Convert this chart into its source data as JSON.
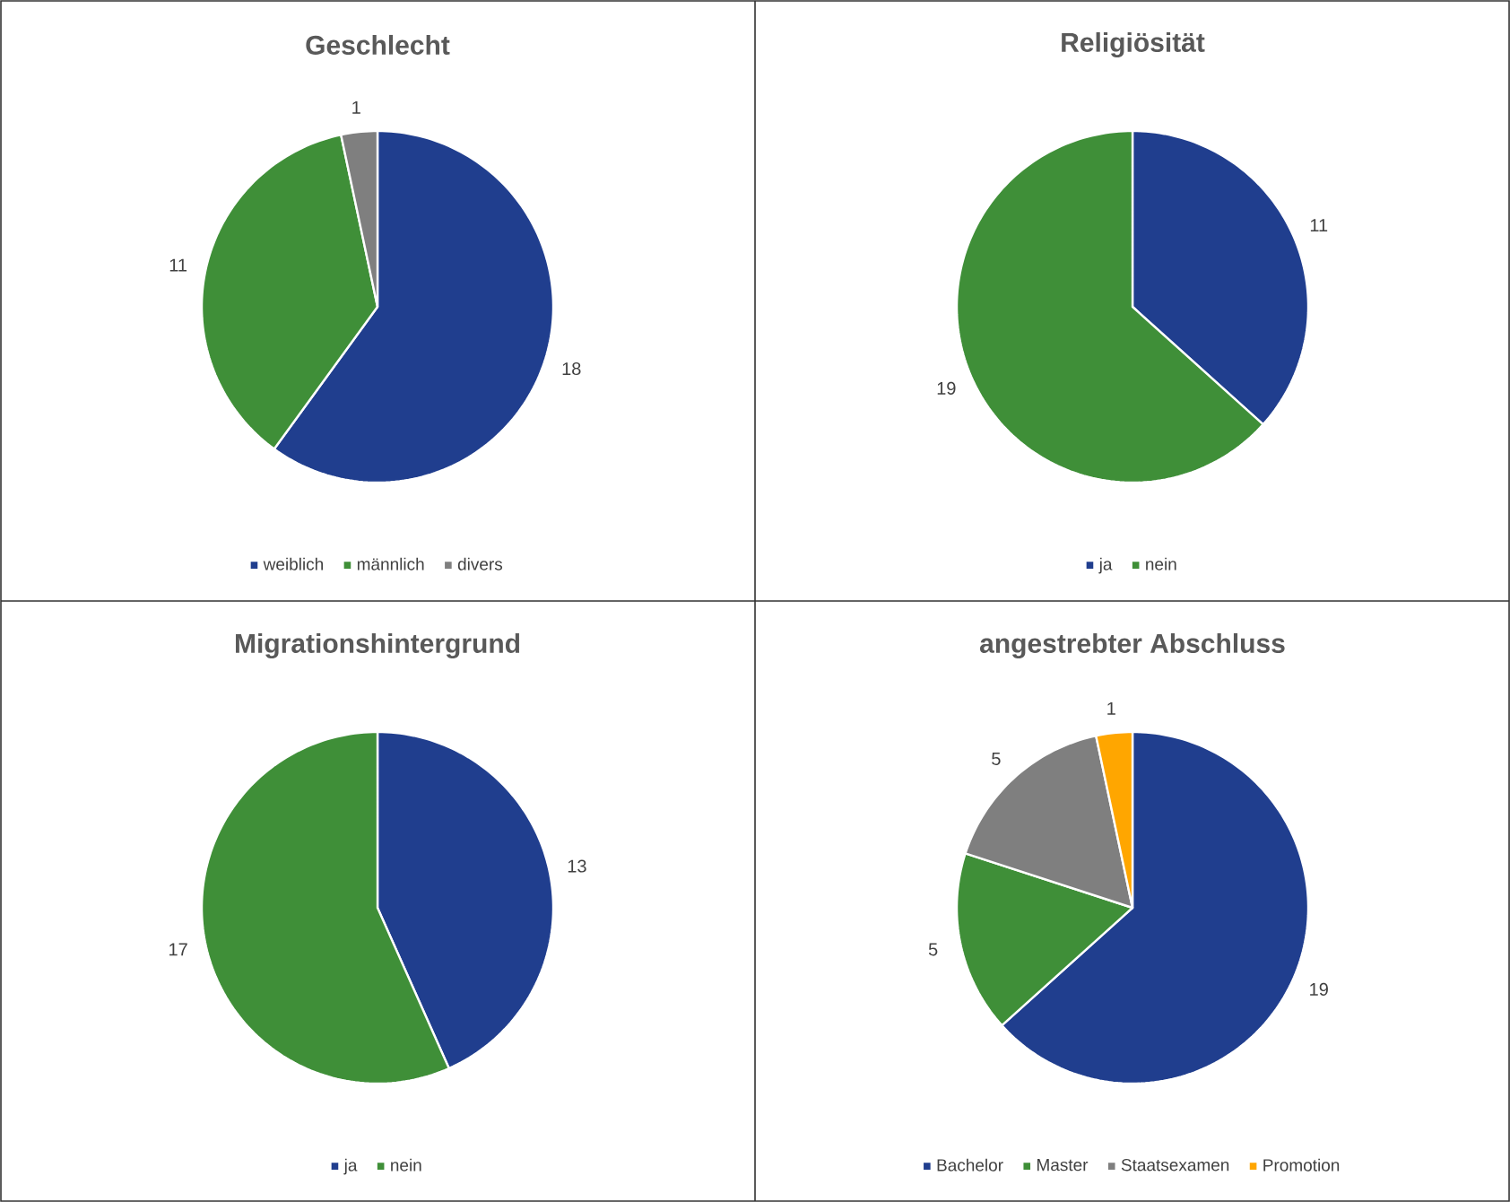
{
  "chart_data": [
    {
      "type": "pie",
      "title": "Geschlecht",
      "categories": [
        "weiblich",
        "männlich",
        "divers"
      ],
      "values": [
        18,
        11,
        1
      ],
      "value_labels": [
        "18",
        "11",
        "1"
      ],
      "colors": [
        "#203e8e",
        "#3f8f38",
        "#7f7f7f"
      ],
      "legend": "bottom"
    },
    {
      "type": "pie",
      "title": "Religiösität",
      "categories": [
        "ja",
        "nein"
      ],
      "values": [
        11,
        19
      ],
      "value_labels": [
        "11",
        "19"
      ],
      "colors": [
        "#203e8e",
        "#3f8f38"
      ],
      "legend": "bottom"
    },
    {
      "type": "pie",
      "title": "Migrationshintergrund",
      "categories": [
        "ja",
        "nein"
      ],
      "values": [
        13,
        17
      ],
      "value_labels": [
        "13",
        "17"
      ],
      "colors": [
        "#203e8e",
        "#3f8f38"
      ],
      "legend": "bottom"
    },
    {
      "type": "pie",
      "title": "angestrebter Abschluss",
      "categories": [
        "Bachelor",
        "Master",
        "Staatsexamen",
        "Promotion"
      ],
      "values": [
        19,
        5,
        5,
        1
      ],
      "value_labels": [
        "19",
        "5",
        "5",
        "1"
      ],
      "colors": [
        "#203e8e",
        "#3f8f38",
        "#7f7f7f",
        "#ffa600"
      ],
      "legend": "bottom"
    }
  ]
}
